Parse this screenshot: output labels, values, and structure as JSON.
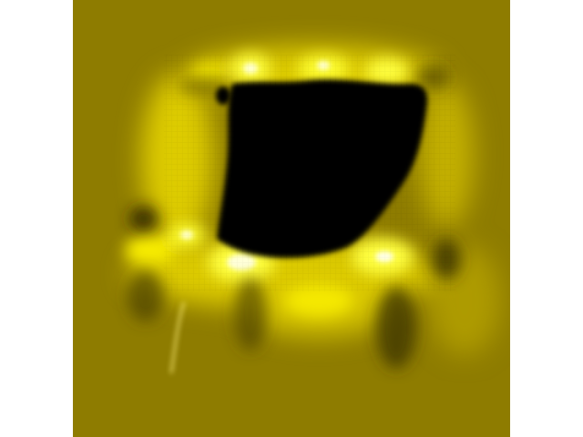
{
  "image": {
    "kind": "false-color microscopy image",
    "colors": {
      "background": "#8e7c00",
      "highlight": "#ffff33",
      "bright": "#fff000",
      "shadow": "#2a2200",
      "void": "#000000"
    }
  }
}
